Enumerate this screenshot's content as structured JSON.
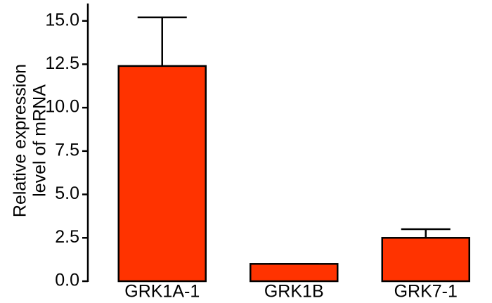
{
  "chart_data": {
    "type": "bar",
    "ylabel": [
      "Relative expression",
      "level of mRNA"
    ],
    "categories": [
      "GRK1A-1",
      "GRK1B",
      "GRK7-1"
    ],
    "values": [
      12.4,
      1.0,
      2.5
    ],
    "errors": [
      2.8,
      0,
      0.5
    ],
    "color": "#ff3300",
    "ylim": [
      0,
      16
    ],
    "yticks": [
      {
        "value": 0,
        "label": "0.0"
      },
      {
        "value": 2.5,
        "label": "2.5"
      },
      {
        "value": 5,
        "label": "5.0"
      },
      {
        "value": 7.5,
        "label": "7.5"
      },
      {
        "value": 10,
        "label": "10.0"
      },
      {
        "value": 12.5,
        "label": "12.5"
      },
      {
        "value": 15,
        "label": "15.0"
      }
    ]
  }
}
